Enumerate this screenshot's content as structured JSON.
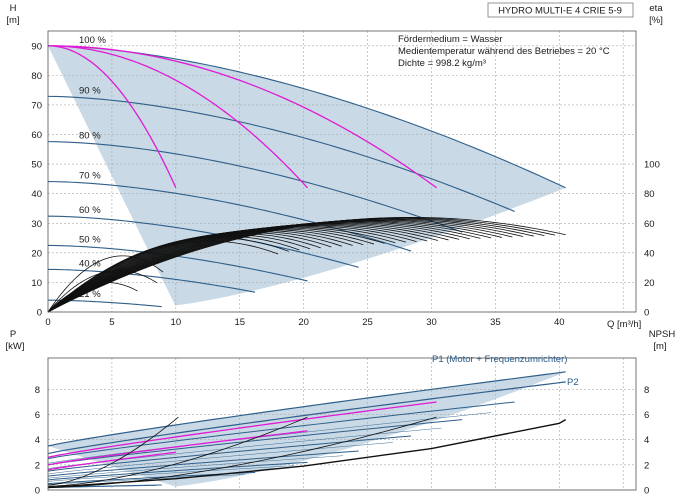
{
  "chart_data": [
    {
      "type": "line",
      "title": "HYDRO MULTI-E 4 CRIE 5-9",
      "xlabel": "Q [m³/h]",
      "ylabel": "H",
      "ylabel_unit": "[m]",
      "y2label": "eta",
      "y2label_unit": "[%]",
      "xlim": [
        0,
        46
      ],
      "ylim": [
        0,
        95
      ],
      "y2lim": [
        0,
        190
      ],
      "grid": true,
      "x_ticks": [
        0,
        5,
        10,
        15,
        20,
        25,
        30,
        35,
        40
      ],
      "y_ticks": [
        0,
        10,
        20,
        30,
        40,
        50,
        60,
        70,
        80,
        90
      ],
      "y2_ticks": [
        0,
        20,
        40,
        60,
        80,
        100
      ],
      "notes": [
        "Fördermedium = Wasser",
        "Medientemperatur während des Betriebes = 20 °C",
        "Dichte = 998.2 kg/m³"
      ],
      "speed_curves": [
        {
          "label": "100 %",
          "h0": 90,
          "qmax": 40.5,
          "hend": 42
        },
        {
          "label": "90 %",
          "h0": 72.9,
          "qmax": 36.5,
          "hend": 34
        },
        {
          "label": "80 %",
          "h0": 57.6,
          "qmax": 32.4,
          "hend": 27
        },
        {
          "label": "70 %",
          "h0": 44.1,
          "qmax": 28.4,
          "hend": 20.6
        },
        {
          "label": "60 %",
          "h0": 32.4,
          "qmax": 24.3,
          "hend": 15.1
        },
        {
          "label": "50 %",
          "h0": 22.5,
          "qmax": 20.3,
          "hend": 10.5
        },
        {
          "label": "40 %",
          "h0": 14.4,
          "qmax": 16.2,
          "hend": 6.7
        },
        {
          "label": "21 %",
          "h0": 4,
          "qmax": 8.9,
          "hend": 1.8
        }
      ],
      "pump_curves_magenta": [
        {
          "qend": 10,
          "hend": 42
        },
        {
          "qend": 20.3,
          "hend": 42
        },
        {
          "qend": 30.4,
          "hend": 42
        }
      ],
      "eta_band": {
        "q_end_min": 18,
        "q_end_max": 40.5,
        "eta_peak_min": 48,
        "eta_peak_max": 64
      }
    },
    {
      "type": "line",
      "ylabel": "P",
      "ylabel_unit": "[kW]",
      "y2label": "NPSH",
      "y2label_unit": "[m]",
      "xlim": [
        0,
        46
      ],
      "ylim": [
        0,
        10.5
      ],
      "y2lim": [
        0,
        10.5
      ],
      "grid": true,
      "y_ticks": [
        0,
        2,
        4,
        6,
        8
      ],
      "y2_ticks": [
        0,
        2,
        4,
        6,
        8
      ],
      "series": [
        {
          "name": "P1 (Motor + Frequenzumrichter)",
          "p0": 3.5,
          "qmax": 40.5,
          "pend": 9.4
        },
        {
          "name": "P2",
          "p0": 2.9,
          "qmax": 40.5,
          "pend": 8.6
        }
      ],
      "power_curves": [
        {
          "p0": 2.5,
          "qmax": 36.5,
          "pend": 7.0
        },
        {
          "p0": 2.0,
          "qmax": 32.4,
          "pend": 5.6
        },
        {
          "p0": 1.5,
          "qmax": 28.4,
          "pend": 4.3
        },
        {
          "p0": 1.1,
          "qmax": 24.3,
          "pend": 3.1
        },
        {
          "p0": 0.8,
          "qmax": 20.3,
          "pend": 2.2
        },
        {
          "p0": 0.5,
          "qmax": 16.2,
          "pend": 1.4
        },
        {
          "p0": 0.2,
          "qmax": 8.9,
          "pend": 0.4
        }
      ],
      "power_curves_magenta": [
        {
          "p0": 2.6,
          "qend": 30.4,
          "pend": 7.0
        },
        {
          "p0": 2.0,
          "qend": 20.3,
          "pend": 4.7
        },
        {
          "p0": 1.6,
          "qend": 10,
          "pend": 3.0
        }
      ],
      "npsh": [
        [
          0,
          0.2
        ],
        [
          10,
          0.9
        ],
        [
          20,
          1.9
        ],
        [
          30,
          3.3
        ],
        [
          40,
          5.3
        ],
        [
          40.5,
          5.6
        ]
      ]
    }
  ]
}
